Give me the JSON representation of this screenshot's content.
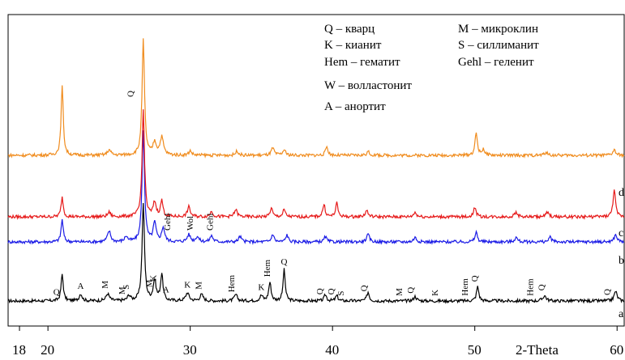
{
  "chart_data": {
    "type": "line",
    "title": "",
    "xlabel": "2-Theta",
    "ylabel": "",
    "xlim": [
      17.2,
      60.5
    ],
    "x_ticks": [
      18,
      20,
      30,
      40,
      50,
      60
    ],
    "x_tick_labels": [
      "18",
      "20",
      "30",
      "40",
      "50",
      "60"
    ],
    "grid": false,
    "legend_position": "top-center",
    "legend": [
      "Q – кварц",
      "K – кианит",
      "Hem – гематит",
      "W – волластонит",
      "A – анортит",
      "M – микроклин",
      "S – силлиманит",
      "Gehl – геленит"
    ],
    "series": [
      {
        "name": "a",
        "color": "#000000",
        "baseline": 0.0,
        "peaks": [
          [
            21.0,
            0.6,
            0.09
          ],
          [
            22.3,
            0.16,
            0.12
          ],
          [
            24.2,
            0.16,
            0.14
          ],
          [
            25.7,
            0.12,
            0.12
          ],
          [
            26.7,
            2.2,
            0.1
          ],
          [
            27.5,
            0.45,
            0.12
          ],
          [
            28.0,
            0.6,
            0.1
          ],
          [
            29.8,
            0.18,
            0.14
          ],
          [
            30.8,
            0.14,
            0.14
          ],
          [
            33.2,
            0.14,
            0.12
          ],
          [
            35.0,
            0.12,
            0.12
          ],
          [
            35.6,
            0.42,
            0.1
          ],
          [
            36.6,
            0.7,
            0.09
          ],
          [
            39.5,
            0.14,
            0.1
          ],
          [
            40.3,
            0.12,
            0.1
          ],
          [
            42.5,
            0.2,
            0.1
          ],
          [
            45.8,
            0.1,
            0.12
          ],
          [
            50.2,
            0.32,
            0.1
          ],
          [
            54.9,
            0.12,
            0.14
          ],
          [
            59.9,
            0.22,
            0.12
          ]
        ]
      },
      {
        "name": "b",
        "color": "#1a1ae6",
        "baseline": 0.0,
        "peaks": [
          [
            21.0,
            0.5,
            0.09
          ],
          [
            24.3,
            0.24,
            0.13
          ],
          [
            25.5,
            0.12,
            0.12
          ],
          [
            26.7,
            2.5,
            0.1
          ],
          [
            27.5,
            0.42,
            0.12
          ],
          [
            28.1,
            0.32,
            0.12
          ],
          [
            29.9,
            0.16,
            0.14
          ],
          [
            30.5,
            0.12,
            0.12
          ],
          [
            31.5,
            0.14,
            0.12
          ],
          [
            33.5,
            0.12,
            0.12
          ],
          [
            35.8,
            0.18,
            0.1
          ],
          [
            36.8,
            0.16,
            0.1
          ],
          [
            39.5,
            0.12,
            0.1
          ],
          [
            42.5,
            0.16,
            0.12
          ],
          [
            45.8,
            0.1,
            0.12
          ],
          [
            50.1,
            0.22,
            0.1
          ],
          [
            52.9,
            0.1,
            0.12
          ],
          [
            55.3,
            0.1,
            0.12
          ],
          [
            59.9,
            0.16,
            0.12
          ]
        ]
      },
      {
        "name": "c",
        "color": "#e61919",
        "baseline": 0.0,
        "peaks": [
          [
            21.0,
            0.44,
            0.09
          ],
          [
            24.3,
            0.1,
            0.12
          ],
          [
            26.7,
            2.4,
            0.1
          ],
          [
            27.5,
            0.32,
            0.12
          ],
          [
            28.0,
            0.36,
            0.1
          ],
          [
            29.9,
            0.22,
            0.12
          ],
          [
            31.5,
            0.12,
            0.12
          ],
          [
            33.2,
            0.16,
            0.12
          ],
          [
            35.7,
            0.2,
            0.1
          ],
          [
            36.6,
            0.16,
            0.1
          ],
          [
            39.4,
            0.28,
            0.1
          ],
          [
            40.3,
            0.3,
            0.1
          ],
          [
            42.4,
            0.14,
            0.12
          ],
          [
            45.8,
            0.1,
            0.12
          ],
          [
            50.0,
            0.22,
            0.1
          ],
          [
            52.9,
            0.1,
            0.12
          ],
          [
            55.1,
            0.1,
            0.12
          ],
          [
            59.8,
            0.62,
            0.1
          ]
        ]
      },
      {
        "name": "d",
        "color": "#f08c1e",
        "baseline": 0.0,
        "peaks": [
          [
            21.0,
            1.55,
            0.09
          ],
          [
            24.3,
            0.12,
            0.14
          ],
          [
            26.7,
            2.6,
            0.1
          ],
          [
            27.5,
            0.28,
            0.14
          ],
          [
            28.0,
            0.4,
            0.14
          ],
          [
            30.0,
            0.1,
            0.12
          ],
          [
            33.3,
            0.1,
            0.12
          ],
          [
            35.8,
            0.16,
            0.12
          ],
          [
            36.6,
            0.12,
            0.12
          ],
          [
            39.6,
            0.2,
            0.1
          ],
          [
            42.5,
            0.08,
            0.12
          ],
          [
            50.1,
            0.5,
            0.1
          ],
          [
            50.6,
            0.14,
            0.1
          ],
          [
            55.0,
            0.06,
            0.14
          ],
          [
            59.8,
            0.12,
            0.12
          ]
        ]
      }
    ],
    "curve_labels": [
      "a",
      "b",
      "c",
      "d"
    ],
    "peak_labels": [
      {
        "text": "Q",
        "x": 26.0,
        "curve": "top",
        "vertical": true
      },
      {
        "text": "Q",
        "x": 20.6,
        "curve": "a",
        "vertical": false
      },
      {
        "text": "A",
        "x": 22.3,
        "curve": "a",
        "vertical": false
      },
      {
        "text": "M",
        "x": 24.2,
        "curve": "a",
        "vertical": true
      },
      {
        "text": "M",
        "x": 25.4,
        "curve": "a",
        "vertical": true
      },
      {
        "text": "S",
        "x": 25.7,
        "curve": "a",
        "vertical": true
      },
      {
        "text": "M",
        "x": 27.3,
        "curve": "a",
        "vertical": true
      },
      {
        "text": "K",
        "x": 27.6,
        "curve": "a",
        "vertical": true
      },
      {
        "text": "A",
        "x": 28.3,
        "curve": "a",
        "vertical": false
      },
      {
        "text": "K",
        "x": 29.8,
        "curve": "a",
        "vertical": false
      },
      {
        "text": "M",
        "x": 30.8,
        "curve": "a",
        "vertical": true
      },
      {
        "text": "Hem",
        "x": 33.1,
        "curve": "a",
        "vertical": true
      },
      {
        "text": "K",
        "x": 35.0,
        "curve": "a",
        "vertical": false
      },
      {
        "text": "Hem",
        "x": 35.6,
        "curve": "a",
        "vertical": true
      },
      {
        "text": "Q",
        "x": 36.6,
        "curve": "a",
        "vertical": false
      },
      {
        "text": "Q",
        "x": 39.3,
        "curve": "a",
        "vertical": true
      },
      {
        "text": "Q",
        "x": 40.1,
        "curve": "a",
        "vertical": true
      },
      {
        "text": "S",
        "x": 40.8,
        "curve": "a",
        "vertical": true
      },
      {
        "text": "Q",
        "x": 42.4,
        "curve": "a",
        "vertical": true
      },
      {
        "text": "M",
        "x": 44.9,
        "curve": "a",
        "vertical": true
      },
      {
        "text": "Q",
        "x": 45.7,
        "curve": "a",
        "vertical": true
      },
      {
        "text": "K",
        "x": 47.4,
        "curve": "a",
        "vertical": true
      },
      {
        "text": "Hem",
        "x": 49.5,
        "curve": "a",
        "vertical": true
      },
      {
        "text": "Q",
        "x": 50.2,
        "curve": "a",
        "vertical": true
      },
      {
        "text": "Hem",
        "x": 54.1,
        "curve": "a",
        "vertical": true
      },
      {
        "text": "Q",
        "x": 54.9,
        "curve": "a",
        "vertical": true
      },
      {
        "text": "Q",
        "x": 59.5,
        "curve": "a",
        "vertical": true
      },
      {
        "text": "Gehl",
        "x": 28.6,
        "curve": "b",
        "vertical": true
      },
      {
        "text": "Wol",
        "x": 30.2,
        "curve": "b",
        "vertical": true
      },
      {
        "text": "Gehl",
        "x": 31.6,
        "curve": "b",
        "vertical": true
      }
    ]
  }
}
